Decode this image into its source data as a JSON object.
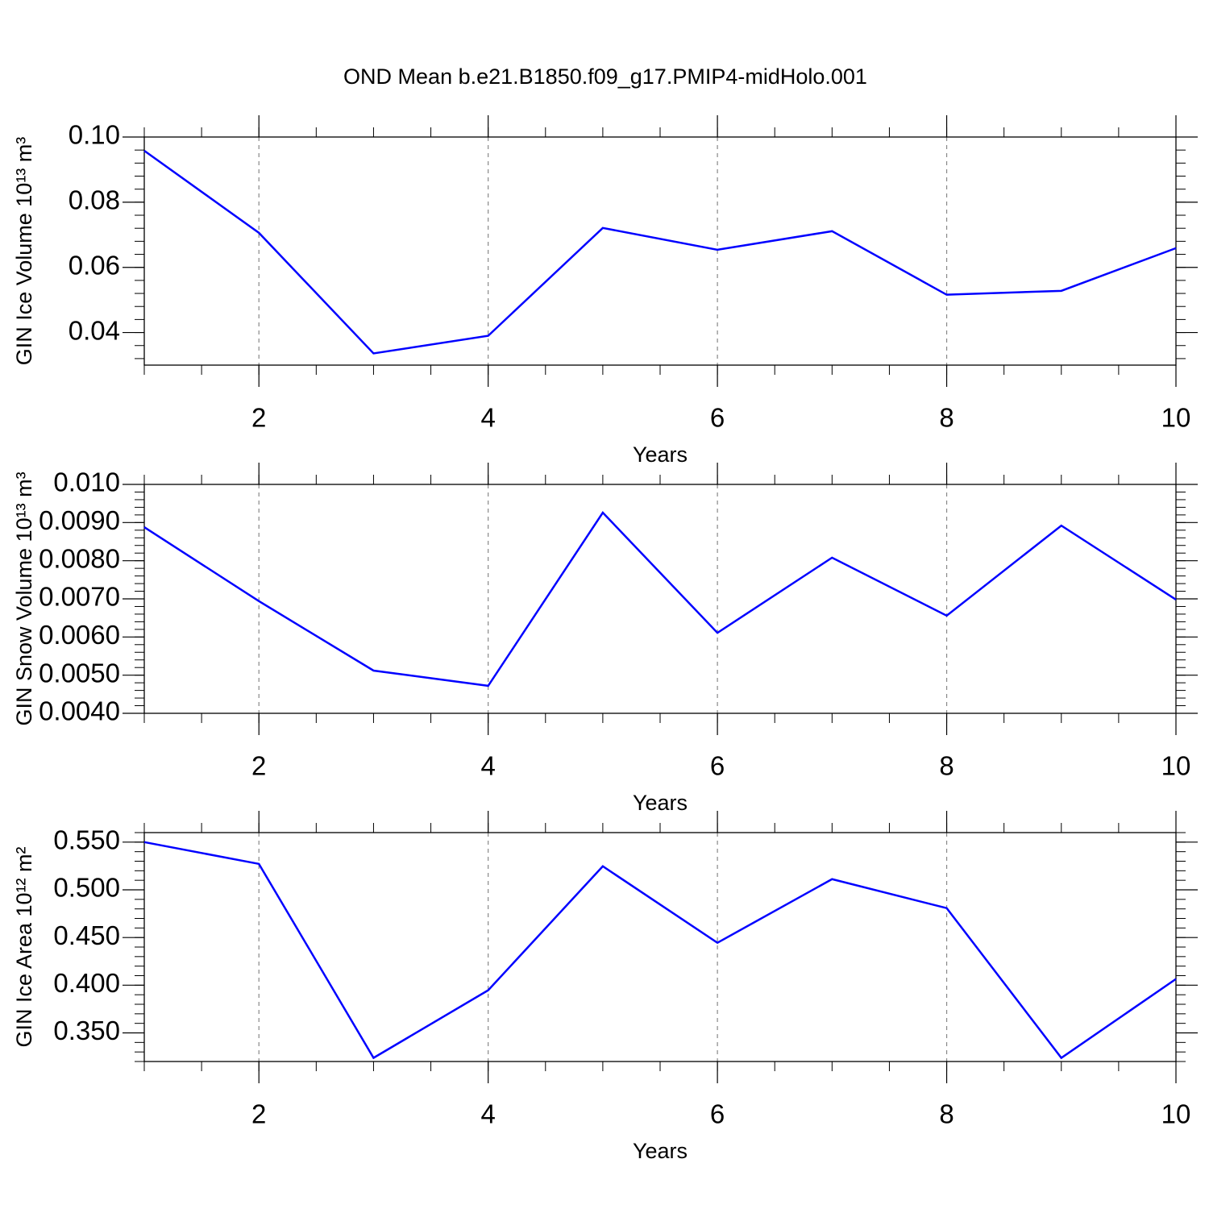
{
  "chart_data": [
    {
      "type": "line",
      "title": "OND Mean b.e21.B1850.f09_g17.PMIP4-midHolo.001",
      "x_label": "Years",
      "y_label": "GIN Ice Volume 10¹³ m³",
      "x": [
        1,
        2,
        3,
        4,
        5,
        6,
        7,
        8,
        9,
        10
      ],
      "series": [
        {
          "color": "#0000ff",
          "values": [
            0.0958,
            0.0706,
            0.0336,
            0.039,
            0.0721,
            0.0654,
            0.0711,
            0.0516,
            0.0528,
            0.0659
          ]
        }
      ],
      "xlim": [
        1,
        10
      ],
      "xticks": [
        2,
        4,
        6,
        8,
        10
      ],
      "ylim": [
        0.03,
        0.1
      ],
      "yticks": [
        {
          "value": 0.04,
          "label": "0.04"
        },
        {
          "value": 0.06,
          "label": "0.06"
        },
        {
          "value": 0.08,
          "label": "0.08"
        },
        {
          "value": 0.1,
          "label": "0.10"
        }
      ],
      "grid": true
    },
    {
      "type": "line",
      "x_label": "Years",
      "y_label": "GIN Snow Volume 10¹³ m³",
      "x": [
        1,
        2,
        3,
        4,
        5,
        6,
        7,
        8,
        9,
        10
      ],
      "series": [
        {
          "color": "#0000ff",
          "values": [
            0.00888,
            0.00694,
            0.00512,
            0.00472,
            0.00926,
            0.00611,
            0.00808,
            0.00656,
            0.00892,
            0.00698
          ]
        }
      ],
      "xlim": [
        1,
        10
      ],
      "xticks": [
        2,
        4,
        6,
        8,
        10
      ],
      "ylim": [
        0.004,
        0.01
      ],
      "yticks": [
        {
          "value": 0.004,
          "label": "0.0040"
        },
        {
          "value": 0.005,
          "label": "0.0050"
        },
        {
          "value": 0.006,
          "label": "0.0060"
        },
        {
          "value": 0.007,
          "label": "0.0070"
        },
        {
          "value": 0.008,
          "label": "0.0080"
        },
        {
          "value": 0.009,
          "label": "0.0090"
        },
        {
          "value": 0.01,
          "label": "0.010"
        }
      ],
      "grid": true
    },
    {
      "type": "line",
      "x_label": "Years",
      "y_label": "GIN Ice Area 10¹² m²",
      "x": [
        1,
        2,
        3,
        4,
        5,
        6,
        7,
        8,
        9,
        10
      ],
      "series": [
        {
          "color": "#0000ff",
          "values": [
            0.55,
            0.5272,
            0.3238,
            0.3947,
            0.5247,
            0.4445,
            0.5112,
            0.4808,
            0.3238,
            0.4065
          ]
        }
      ],
      "xlim": [
        1,
        10
      ],
      "xticks": [
        2,
        4,
        6,
        8,
        10
      ],
      "ylim": [
        0.32,
        0.56
      ],
      "yticks": [
        {
          "value": 0.35,
          "label": "0.350"
        },
        {
          "value": 0.4,
          "label": "0.400"
        },
        {
          "value": 0.45,
          "label": "0.450"
        },
        {
          "value": 0.5,
          "label": "0.500"
        },
        {
          "value": 0.55,
          "label": "0.550"
        }
      ],
      "grid": true
    }
  ]
}
